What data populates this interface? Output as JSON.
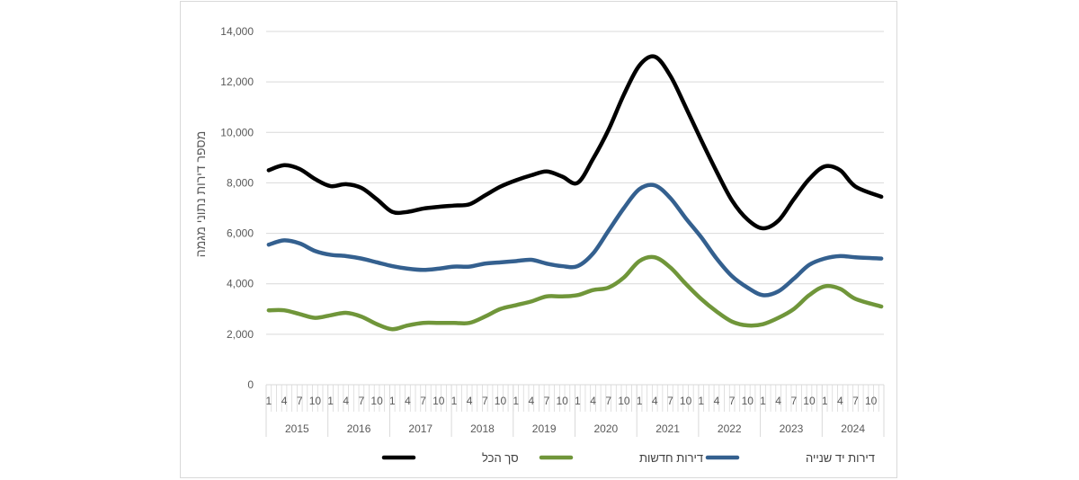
{
  "chart_data": {
    "type": "line",
    "ylabel": "מספר דירות נתוני  מגמה",
    "xlabel": "",
    "ylim": [
      0,
      14000
    ],
    "y_ticks": [
      0,
      2000,
      4000,
      6000,
      8000,
      10000,
      12000,
      14000
    ],
    "y_tick_labels": [
      "0",
      "2,000",
      "4,000",
      "6,000",
      "8,000",
      "10,000",
      "12,000",
      "14,000"
    ],
    "grid": true,
    "legend_position": "bottom",
    "years": [
      "2015",
      "2016",
      "2017",
      "2018",
      "2019",
      "2020",
      "2021",
      "2022",
      "2023",
      "2024"
    ],
    "month_tick_labels": [
      "1",
      "4",
      "7",
      "10"
    ],
    "x_start": "2015-01",
    "x_end": "2024-12",
    "series": [
      {
        "name": "סך הכל",
        "color": "#000000",
        "points": [
          [
            "2015-01",
            8500
          ],
          [
            "2015-04",
            8700
          ],
          [
            "2015-07",
            8550
          ],
          [
            "2015-10",
            8150
          ],
          [
            "2016-01",
            7870
          ],
          [
            "2016-04",
            7950
          ],
          [
            "2016-07",
            7800
          ],
          [
            "2016-10",
            7350
          ],
          [
            "2017-01",
            6850
          ],
          [
            "2017-04",
            6850
          ],
          [
            "2017-07",
            6980
          ],
          [
            "2017-10",
            7050
          ],
          [
            "2018-01",
            7100
          ],
          [
            "2018-04",
            7150
          ],
          [
            "2018-07",
            7500
          ],
          [
            "2018-10",
            7850
          ],
          [
            "2019-01",
            8100
          ],
          [
            "2019-04",
            8300
          ],
          [
            "2019-07",
            8450
          ],
          [
            "2019-10",
            8250
          ],
          [
            "2020-01",
            8000
          ],
          [
            "2020-04",
            8950
          ],
          [
            "2020-07",
            10100
          ],
          [
            "2020-10",
            11500
          ],
          [
            "2021-01",
            12650
          ],
          [
            "2021-04",
            13000
          ],
          [
            "2021-07",
            12250
          ],
          [
            "2021-10",
            11000
          ],
          [
            "2022-01",
            9700
          ],
          [
            "2022-04",
            8450
          ],
          [
            "2022-07",
            7300
          ],
          [
            "2022-10",
            6550
          ],
          [
            "2023-01",
            6200
          ],
          [
            "2023-04",
            6500
          ],
          [
            "2023-07",
            7350
          ],
          [
            "2023-10",
            8150
          ],
          [
            "2024-01",
            8650
          ],
          [
            "2024-04",
            8500
          ],
          [
            "2024-07",
            7850
          ],
          [
            "2024-12",
            7450
          ]
        ]
      },
      {
        "name": "דירות חדשות",
        "color": "#70963a",
        "points": [
          [
            "2015-01",
            2950
          ],
          [
            "2015-04",
            2950
          ],
          [
            "2015-07",
            2800
          ],
          [
            "2015-10",
            2650
          ],
          [
            "2016-01",
            2750
          ],
          [
            "2016-04",
            2850
          ],
          [
            "2016-07",
            2700
          ],
          [
            "2016-10",
            2400
          ],
          [
            "2017-01",
            2200
          ],
          [
            "2017-04",
            2350
          ],
          [
            "2017-07",
            2450
          ],
          [
            "2017-10",
            2450
          ],
          [
            "2018-01",
            2450
          ],
          [
            "2018-04",
            2450
          ],
          [
            "2018-07",
            2700
          ],
          [
            "2018-10",
            3000
          ],
          [
            "2019-01",
            3150
          ],
          [
            "2019-04",
            3300
          ],
          [
            "2019-07",
            3500
          ],
          [
            "2019-10",
            3500
          ],
          [
            "2020-01",
            3550
          ],
          [
            "2020-04",
            3750
          ],
          [
            "2020-07",
            3850
          ],
          [
            "2020-10",
            4250
          ],
          [
            "2021-01",
            4900
          ],
          [
            "2021-04",
            5050
          ],
          [
            "2021-07",
            4650
          ],
          [
            "2021-10",
            4000
          ],
          [
            "2022-01",
            3400
          ],
          [
            "2022-04",
            2900
          ],
          [
            "2022-07",
            2500
          ],
          [
            "2022-10",
            2350
          ],
          [
            "2023-01",
            2400
          ],
          [
            "2023-04",
            2650
          ],
          [
            "2023-07",
            3000
          ],
          [
            "2023-10",
            3550
          ],
          [
            "2024-01",
            3900
          ],
          [
            "2024-04",
            3800
          ],
          [
            "2024-07",
            3400
          ],
          [
            "2024-12",
            3100
          ]
        ]
      },
      {
        "name": "דירות יד שנייה",
        "color": "#34608f",
        "points": [
          [
            "2015-01",
            5550
          ],
          [
            "2015-04",
            5720
          ],
          [
            "2015-07",
            5600
          ],
          [
            "2015-10",
            5300
          ],
          [
            "2016-01",
            5150
          ],
          [
            "2016-04",
            5100
          ],
          [
            "2016-07",
            5000
          ],
          [
            "2016-10",
            4850
          ],
          [
            "2017-01",
            4700
          ],
          [
            "2017-04",
            4600
          ],
          [
            "2017-07",
            4550
          ],
          [
            "2017-10",
            4600
          ],
          [
            "2018-01",
            4680
          ],
          [
            "2018-04",
            4680
          ],
          [
            "2018-07",
            4800
          ],
          [
            "2018-10",
            4850
          ],
          [
            "2019-01",
            4900
          ],
          [
            "2019-04",
            4950
          ],
          [
            "2019-07",
            4800
          ],
          [
            "2019-10",
            4700
          ],
          [
            "2020-01",
            4700
          ],
          [
            "2020-04",
            5200
          ],
          [
            "2020-07",
            6100
          ],
          [
            "2020-10",
            7000
          ],
          [
            "2021-01",
            7750
          ],
          [
            "2021-04",
            7900
          ],
          [
            "2021-07",
            7400
          ],
          [
            "2021-10",
            6600
          ],
          [
            "2022-01",
            5850
          ],
          [
            "2022-04",
            5000
          ],
          [
            "2022-07",
            4300
          ],
          [
            "2022-10",
            3850
          ],
          [
            "2023-01",
            3550
          ],
          [
            "2023-04",
            3700
          ],
          [
            "2023-07",
            4200
          ],
          [
            "2023-10",
            4750
          ],
          [
            "2024-01",
            5000
          ],
          [
            "2024-04",
            5100
          ],
          [
            "2024-07",
            5050
          ],
          [
            "2024-12",
            5000
          ]
        ]
      }
    ]
  }
}
